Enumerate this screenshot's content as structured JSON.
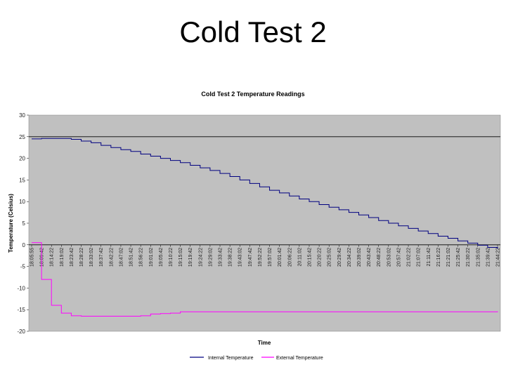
{
  "slide": {
    "title": "Cold Test 2"
  },
  "chart_data": {
    "type": "line",
    "title": "Cold Test 2 Temperature Readings",
    "xlabel": "Time",
    "ylabel": "Temperature (Celsius)",
    "ylim": [
      -20,
      30
    ],
    "yticks": [
      -20,
      -15,
      -10,
      -5,
      0,
      5,
      10,
      15,
      20,
      25,
      30
    ],
    "grid": false,
    "reference_line": 25,
    "background": "#c0c0c0",
    "categories": [
      "18:05:55",
      "18:09:42",
      "18:14:22",
      "18:19:02",
      "18:23:42",
      "18:28:22",
      "18:33:02",
      "18:37:42",
      "18:42:22",
      "18:47:02",
      "18:51:42",
      "18:56:22",
      "19:01:02",
      "19:05:42",
      "19:10:22",
      "19:15:02",
      "19:19:42",
      "19:24:22",
      "19:29:02",
      "19:33:42",
      "19:38:22",
      "19:43:02",
      "19:47:42",
      "19:52:22",
      "19:57:02",
      "20:01:42",
      "20:06:22",
      "20:11:02",
      "20:15:42",
      "20:20:22",
      "20:25:02",
      "20:29:42",
      "20:34:22",
      "20:39:02",
      "20:43:42",
      "20:48:22",
      "20:53:02",
      "20:57:42",
      "21:02:22",
      "21:07:02",
      "21:11:42",
      "21:16:22",
      "21:21:02",
      "21:25:42",
      "21:30:22",
      "21:35:02",
      "21:39:42",
      "21:44:22"
    ],
    "series": [
      {
        "name": "Internal Temperature",
        "color": "#000080",
        "values": [
          24.5,
          24.6,
          24.6,
          24.6,
          24.4,
          24.0,
          23.6,
          23.0,
          22.5,
          22.0,
          21.6,
          21.0,
          20.5,
          20.0,
          19.5,
          19.0,
          18.4,
          17.8,
          17.2,
          16.5,
          15.8,
          15.0,
          14.2,
          13.4,
          12.6,
          12.0,
          11.3,
          10.6,
          10.0,
          9.3,
          8.7,
          8.1,
          7.5,
          6.9,
          6.3,
          5.6,
          5.0,
          4.4,
          3.8,
          3.2,
          2.6,
          2.0,
          1.5,
          0.9,
          0.4,
          -0.1,
          -0.6,
          -0.9
        ]
      },
      {
        "name": "External Temperature",
        "color": "#ff00ff",
        "values": [
          0.5,
          -8.0,
          -14.0,
          -15.8,
          -16.4,
          -16.5,
          -16.5,
          -16.5,
          -16.5,
          -16.5,
          -16.5,
          -16.4,
          -16.0,
          -15.9,
          -15.8,
          -15.5,
          -15.5,
          -15.5,
          -15.5,
          -15.5,
          -15.5,
          -15.5,
          -15.5,
          -15.5,
          -15.5,
          -15.5,
          -15.5,
          -15.5,
          -15.5,
          -15.5,
          -15.5,
          -15.5,
          -15.5,
          -15.5,
          -15.5,
          -15.5,
          -15.5,
          -15.5,
          -15.5,
          -15.5,
          -15.5,
          -15.5,
          -15.5,
          -15.5,
          -15.5,
          -15.5,
          -15.5,
          -15.4
        ]
      }
    ]
  }
}
